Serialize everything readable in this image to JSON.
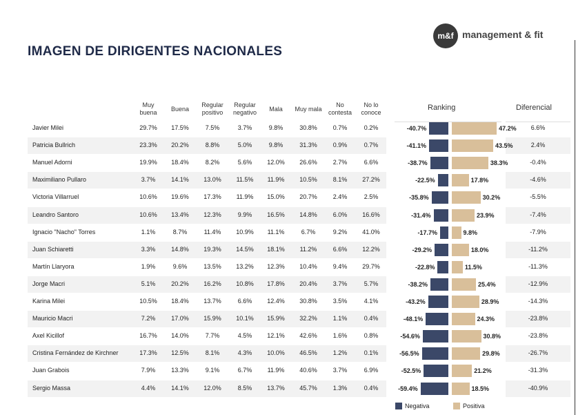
{
  "header": {
    "title": "IMAGEN DE DIRIGENTES NACIONALES",
    "logo_mark": "m&f",
    "logo_text": "management & fit"
  },
  "table": {
    "columns": [
      "Muy buena",
      "Buena",
      "Regular positivo",
      "Regular negativo",
      "Mala",
      "Muy mala",
      "No contesta",
      "No lo conoce"
    ],
    "rows": [
      [
        "Javier Milei",
        "29.7%",
        "17.5%",
        "7.5%",
        "3.7%",
        "9.8%",
        "30.8%",
        "0.7%",
        "0.2%"
      ],
      [
        "Patricia Bullrich",
        "23.3%",
        "20.2%",
        "8.8%",
        "5.0%",
        "9.8%",
        "31.3%",
        "0.9%",
        "0.7%"
      ],
      [
        "Manuel Adorni",
        "19.9%",
        "18.4%",
        "8.2%",
        "5.6%",
        "12.0%",
        "26.6%",
        "2.7%",
        "6.6%"
      ],
      [
        "Maximiliano Pullaro",
        "3.7%",
        "14.1%",
        "13.0%",
        "11.5%",
        "11.9%",
        "10.5%",
        "8.1%",
        "27.2%"
      ],
      [
        "Victoria Villarruel",
        "10.6%",
        "19.6%",
        "17.3%",
        "11.9%",
        "15.0%",
        "20.7%",
        "2.4%",
        "2.5%"
      ],
      [
        "Leandro Santoro",
        "10.6%",
        "13.4%",
        "12.3%",
        "9.9%",
        "16.5%",
        "14.8%",
        "6.0%",
        "16.6%"
      ],
      [
        "Ignacio \"Nacho\" Torres",
        "1.1%",
        "8.7%",
        "11.4%",
        "10.9%",
        "11.1%",
        "6.7%",
        "9.2%",
        "41.0%"
      ],
      [
        "Juan Schiaretti",
        "3.3%",
        "14.8%",
        "19.3%",
        "14.5%",
        "18.1%",
        "11.2%",
        "6.6%",
        "12.2%"
      ],
      [
        "Martín Llaryora",
        "1.9%",
        "9.6%",
        "13.5%",
        "13.2%",
        "12.3%",
        "10.4%",
        "9.4%",
        "29.7%"
      ],
      [
        "Jorge Macri",
        "5.1%",
        "20.2%",
        "16.2%",
        "10.8%",
        "17.8%",
        "20.4%",
        "3.7%",
        "5.7%"
      ],
      [
        "Karina Milei",
        "10.5%",
        "18.4%",
        "13.7%",
        "6.6%",
        "12.4%",
        "30.8%",
        "3.5%",
        "4.1%"
      ],
      [
        "Mauricio Macri",
        "7.2%",
        "17.0%",
        "15.9%",
        "10.1%",
        "15.9%",
        "32.2%",
        "1.1%",
        "0.4%"
      ],
      [
        "Axel Kicillof",
        "16.7%",
        "14.0%",
        "7.7%",
        "4.5%",
        "12.1%",
        "42.6%",
        "1.6%",
        "0.8%"
      ],
      [
        "Cristina Fernández de Kirchner",
        "17.3%",
        "12.5%",
        "8.1%",
        "4.3%",
        "10.0%",
        "46.5%",
        "1.2%",
        "0.1%"
      ],
      [
        "Juan Grabois",
        "7.9%",
        "13.3%",
        "9.1%",
        "6.7%",
        "11.9%",
        "40.6%",
        "3.7%",
        "6.9%"
      ],
      [
        "Sergio Massa",
        "4.4%",
        "14.1%",
        "12.0%",
        "8.5%",
        "13.7%",
        "45.7%",
        "1.3%",
        "0.4%"
      ]
    ]
  },
  "ranking": {
    "title": "Ranking",
    "series": [
      {
        "name": "Negativa",
        "color": "#3b4868",
        "values": [
          -40.7,
          -41.1,
          -38.7,
          -22.5,
          -35.8,
          -31.4,
          -17.7,
          -29.2,
          -22.8,
          -38.2,
          -43.2,
          -48.1,
          -54.6,
          -56.5,
          -52.5,
          -59.4
        ],
        "value_labels": [
          "-40.7%",
          "-41.1%",
          "-38.7%",
          "-22.5%",
          "-35.8%",
          "-31.4%",
          "-17.7%",
          "-29.2%",
          "-22.8%",
          "-38.2%",
          "-43.2%",
          "-48.1%",
          "-54.6%",
          "-56.5%",
          "-52.5%",
          "-59.4%"
        ]
      },
      {
        "name": "Positiva",
        "color": "#d9bf9a",
        "values": [
          47.2,
          43.5,
          38.3,
          17.8,
          30.2,
          23.9,
          9.8,
          18.0,
          11.5,
          25.4,
          28.9,
          24.3,
          30.8,
          29.8,
          21.2,
          18.5
        ],
        "value_labels": [
          "47.2%",
          "43.5%",
          "38.3%",
          "17.8%",
          "30.2%",
          "23.9%",
          "9.8%",
          "18.0%",
          "11.5%",
          "25.4%",
          "28.9%",
          "24.3%",
          "30.8%",
          "29.8%",
          "21.2%",
          "18.5%"
        ]
      }
    ]
  },
  "diferencial": {
    "title": "Diferencial",
    "values": [
      "6.6%",
      "2.4%",
      "-0.4%",
      "-4.6%",
      "-5.5%",
      "-7.4%",
      "-7.9%",
      "-11.2%",
      "-11.3%",
      "-12.9%",
      "-14.3%",
      "-23.8%",
      "-23.8%",
      "-26.7%",
      "-31.3%",
      "-40.9%"
    ]
  }
}
